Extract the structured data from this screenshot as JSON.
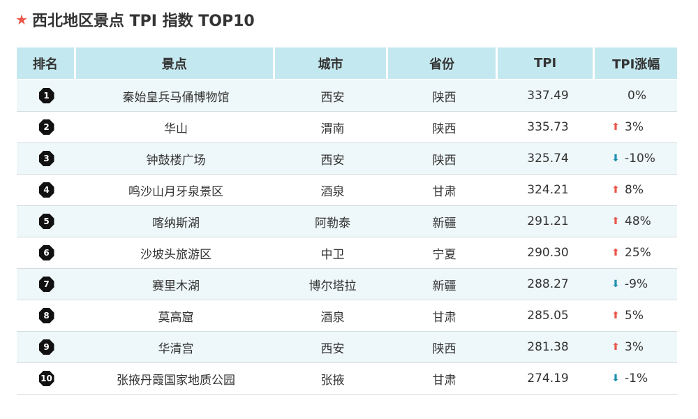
{
  "title": "西北地区景点 TPI 指数 TOP10",
  "colors": {
    "accent_star": "#e8574a",
    "header_bg": "#c4e8ef",
    "row_alt_bg": "#eef7f9",
    "up_arrow": "#e8574a",
    "down_arrow": "#1f8fb0"
  },
  "table": {
    "headers": {
      "rank": "排名",
      "name": "景点",
      "city": "城市",
      "province": "省份",
      "tpi": "TPI",
      "change": "TPI涨幅"
    },
    "rows": [
      {
        "rank": "1",
        "name": "秦始皇兵马俑博物馆",
        "city": "西安",
        "province": "陕西",
        "tpi": "337.49",
        "change": "0%",
        "trend": "flat"
      },
      {
        "rank": "2",
        "name": "华山",
        "city": "渭南",
        "province": "陕西",
        "tpi": "335.73",
        "change": "3%",
        "trend": "up"
      },
      {
        "rank": "3",
        "name": "钟鼓楼广场",
        "city": "西安",
        "province": "陕西",
        "tpi": "325.74",
        "change": "-10%",
        "trend": "down"
      },
      {
        "rank": "4",
        "name": "鸣沙山月牙泉景区",
        "city": "酒泉",
        "province": "甘肃",
        "tpi": "324.21",
        "change": "8%",
        "trend": "up"
      },
      {
        "rank": "5",
        "name": "喀纳斯湖",
        "city": "阿勒泰",
        "province": "新疆",
        "tpi": "291.21",
        "change": "48%",
        "trend": "up"
      },
      {
        "rank": "6",
        "name": "沙坡头旅游区",
        "city": "中卫",
        "province": "宁夏",
        "tpi": "290.30",
        "change": "25%",
        "trend": "up"
      },
      {
        "rank": "7",
        "name": "赛里木湖",
        "city": "博尔塔拉",
        "province": "新疆",
        "tpi": "288.27",
        "change": "-9%",
        "trend": "down"
      },
      {
        "rank": "8",
        "name": "莫高窟",
        "city": "酒泉",
        "province": "甘肃",
        "tpi": "285.05",
        "change": "5%",
        "trend": "up"
      },
      {
        "rank": "9",
        "name": "华清宫",
        "city": "西安",
        "province": "陕西",
        "tpi": "281.38",
        "change": "3%",
        "trend": "up"
      },
      {
        "rank": "10",
        "name": "张掖丹霞国家地质公园",
        "city": "张掖",
        "province": "甘肃",
        "tpi": "274.19",
        "change": "-1%",
        "trend": "down"
      }
    ]
  }
}
